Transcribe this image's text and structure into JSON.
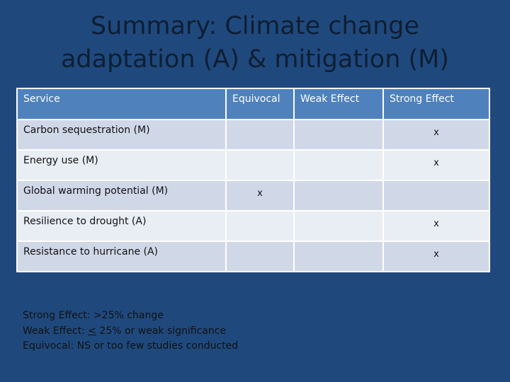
{
  "title": {
    "line1": "Summary: Climate change",
    "line2": "adaptation (A) & mitigation (M)"
  },
  "table": {
    "headers": [
      "Service",
      "Equivocal",
      "Weak Effect",
      "Strong Effect"
    ],
    "rows": [
      {
        "service": "Carbon sequestration  (M)",
        "mark": "x",
        "mark_column": "Strong Effect"
      },
      {
        "service": "Energy use (M)",
        "mark": "x",
        "mark_column": "Strong Effect"
      },
      {
        "service": "Global warming potential (M)",
        "mark": "x",
        "mark_column": "Equivocal"
      },
      {
        "service": "Resilience to drought (A)",
        "mark": "x",
        "mark_column": "Strong Effect"
      },
      {
        "service": "Resistance to hurricane (A)",
        "mark": "x",
        "mark_column": "Strong Effect"
      }
    ]
  },
  "legend": {
    "strong": "Strong Effect: >25% change",
    "weak_prefix": "Weak Effect: ",
    "weak_symbol": "<",
    "weak_suffix": " 25% or weak significance",
    "equivocal": "Equivocal: NS or too few studies conducted"
  },
  "colors": {
    "background": "#1f497d",
    "header": "#4f81bd",
    "row_odd": "#d0d8e8",
    "row_even": "#e9edf4"
  }
}
